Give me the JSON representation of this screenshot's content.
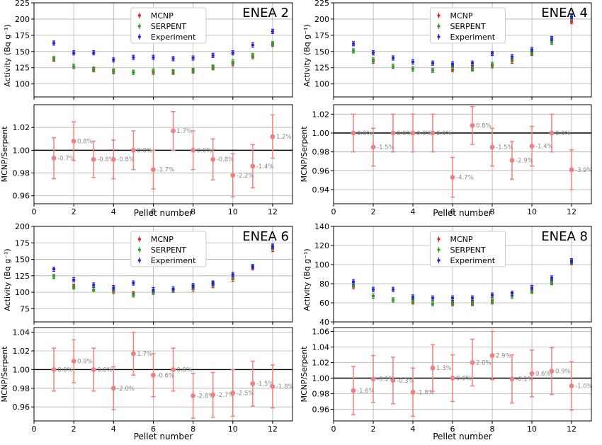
{
  "colors": {
    "mcnp": "#d62728",
    "serpent": "#2ca02c",
    "experiment": "#1f1fd6",
    "ratio": "#f08080",
    "ratio_label": "#888888",
    "grid": "#b0b0b0",
    "axis": "#000000"
  },
  "chart_data": [
    {
      "id": "enea2",
      "title": "ENEA 2",
      "top": {
        "type": "scatter",
        "ylabel": "Activity (Bq g⁻¹)",
        "ylim": [
          80,
          225
        ],
        "yticks": [
          100,
          125,
          150,
          175,
          200,
          225
        ],
        "legend": [
          "MCNP",
          "SERPENT",
          "Experiment"
        ],
        "legend_position": "top-center",
        "series": [
          {
            "name": "MCNP",
            "x": [
              1,
              2,
              3,
              4,
              5,
              6,
              7,
              8,
              9,
              10,
              11,
              12
            ],
            "values": [
              138,
              127,
              122,
              119,
              118,
              118,
              118,
              120,
              125,
              131,
              142,
              161
            ]
          },
          {
            "name": "SERPENT",
            "x": [
              1,
              2,
              3,
              4,
              5,
              6,
              7,
              8,
              9,
              10,
              11,
              12
            ],
            "values": [
              139,
              127,
              123,
              120,
              118,
              120,
              119,
              121,
              126,
              134,
              144,
              162
            ]
          },
          {
            "name": "Experiment",
            "x": [
              1,
              2,
              3,
              4,
              5,
              6,
              7,
              8,
              9,
              10,
              11,
              12
            ],
            "values": [
              163,
              148,
              148,
              137,
              141,
              141,
              139,
              140,
              144,
              148,
              160,
              181
            ]
          }
        ]
      },
      "bottom": {
        "type": "scatter",
        "xlabel": "Pellet number",
        "ylabel": "MCNP/Serpent",
        "xlim": [
          0,
          13
        ],
        "xticks": [
          0,
          2,
          4,
          6,
          8,
          10,
          12
        ],
        "ylim": [
          0.953,
          1.04
        ],
        "yticks": [
          0.96,
          0.98,
          1.0,
          1.02
        ],
        "ytick_labels": [
          "0.96",
          "0.98",
          "1.00",
          "1.02"
        ],
        "reference_line": 1.0,
        "x": [
          1,
          2,
          3,
          4,
          5,
          6,
          7,
          8,
          9,
          10,
          11,
          12
        ],
        "values": [
          0.993,
          1.008,
          0.992,
          0.992,
          1.0,
          0.983,
          1.017,
          1.0,
          0.992,
          0.978,
          0.986,
          1.012
        ],
        "errors": [
          0.018,
          0.017,
          0.016,
          0.017,
          0.017,
          0.017,
          0.017,
          0.017,
          0.018,
          0.019,
          0.019,
          0.019
        ],
        "labels": [
          "-0.7%",
          "0.8%",
          "-0.8%",
          "-0.8%",
          "0.0%",
          "-1.7%",
          "1.7%",
          "0.0%",
          "-0.8%",
          "-2.2%",
          "-1.4%",
          "1.2%"
        ]
      }
    },
    {
      "id": "enea4",
      "title": "ENEA 4",
      "top": {
        "type": "scatter",
        "ylabel": "Activity (Bq g⁻¹)",
        "ylim": [
          80,
          225
        ],
        "yticks": [
          100,
          125,
          150,
          175,
          200,
          225
        ],
        "legend": [
          "MCNP",
          "SERPENT",
          "Experiment"
        ],
        "legend_position": "top-center",
        "series": [
          {
            "name": "MCNP",
            "x": [
              1,
              2,
              3,
              4,
              5,
              6,
              7,
              8,
              9,
              10,
              11,
              12
            ],
            "values": [
              151,
              135,
              127,
              123,
              121,
              122,
              124,
              128,
              135,
              147,
              164,
              196
            ]
          },
          {
            "name": "SERPENT",
            "x": [
              1,
              2,
              3,
              4,
              5,
              6,
              7,
              8,
              9,
              10,
              11,
              12
            ],
            "values": [
              151,
              137,
              127,
              123,
              121,
              126,
              123,
              130,
              138,
              148,
              164,
              202
            ]
          },
          {
            "name": "Experiment",
            "x": [
              1,
              2,
              3,
              4,
              5,
              6,
              7,
              8,
              9,
              10,
              11,
              12
            ],
            "values": [
              162,
              148,
              140,
              134,
              132,
              131,
              132,
              147,
              142,
              153,
              170,
              204
            ]
          }
        ]
      },
      "bottom": {
        "type": "scatter",
        "xlabel": "Pellet number",
        "ylabel": "MCNP/Serpent",
        "xlim": [
          0,
          13
        ],
        "xticks": [
          0,
          2,
          4,
          6,
          8,
          10,
          12
        ],
        "ylim": [
          0.925,
          1.03
        ],
        "yticks": [
          0.94,
          0.96,
          0.98,
          1.0,
          1.02
        ],
        "ytick_labels": [
          "0.94",
          "0.96",
          "0.98",
          "1.00",
          "1.02"
        ],
        "reference_line": 1.0,
        "x": [
          1,
          2,
          3,
          4,
          5,
          6,
          7,
          8,
          9,
          10,
          11,
          12
        ],
        "values": [
          1.0,
          0.985,
          1.0,
          1.0,
          1.0,
          0.953,
          1.008,
          0.985,
          0.971,
          0.986,
          1.0,
          0.961
        ],
        "errors": [
          0.02,
          0.02,
          0.02,
          0.02,
          0.02,
          0.021,
          0.02,
          0.02,
          0.02,
          0.021,
          0.02,
          0.021
        ],
        "labels": [
          "0.0%",
          "-1.5%",
          "0.0%",
          "0.0%",
          "0.0%",
          "-4.7%",
          "0.8%",
          "-1.5%",
          "-2.9%",
          "-1.4%",
          "0.0%",
          "-3.9%"
        ]
      }
    },
    {
      "id": "enea6",
      "title": "ENEA 6",
      "top": {
        "type": "scatter",
        "ylabel": "Activity (Bq g⁻¹)",
        "ylim": [
          55,
          200
        ],
        "yticks": [
          75,
          100,
          125,
          150,
          175,
          200
        ],
        "legend": [
          "MCNP",
          "SERPENT",
          "Experiment"
        ],
        "legend_position": "top-center",
        "series": [
          {
            "name": "MCNP",
            "x": [
              1,
              2,
              3,
              4,
              5,
              6,
              7,
              8,
              9,
              10,
              11,
              12
            ],
            "values": [
              124,
              109,
              104,
              101,
              98,
              100,
              103,
              105,
              110,
              120,
              137,
              165
            ]
          },
          {
            "name": "SERPENT",
            "x": [
              1,
              2,
              3,
              4,
              5,
              6,
              7,
              8,
              9,
              10,
              11,
              12
            ],
            "values": [
              124,
              108,
              104,
              103,
              96,
              101,
              103,
              108,
              113,
              123,
              139,
              168
            ]
          },
          {
            "name": "Experiment",
            "x": [
              1,
              2,
              3,
              4,
              5,
              6,
              7,
              8,
              9,
              10,
              11,
              12
            ],
            "values": [
              135,
              119,
              111,
              107,
              114,
              104,
              105,
              110,
              114,
              127,
              139,
              170
            ]
          }
        ]
      },
      "bottom": {
        "type": "scatter",
        "xlabel": "Pellet number",
        "ylabel": "MCNP/Serpent",
        "xlim": [
          0,
          13
        ],
        "xticks": [
          0,
          2,
          4,
          6,
          8,
          10,
          12
        ],
        "ylim": [
          0.945,
          1.045
        ],
        "yticks": [
          0.96,
          0.98,
          1.0,
          1.02,
          1.04
        ],
        "ytick_labels": [
          "0.96",
          "0.98",
          "1.00",
          "1.02",
          "1.04"
        ],
        "reference_line": 1.0,
        "x": [
          1,
          2,
          3,
          4,
          5,
          6,
          7,
          8,
          9,
          10,
          11,
          12
        ],
        "values": [
          1.0,
          1.009,
          1.0,
          0.98,
          1.017,
          0.994,
          1.0,
          0.972,
          0.973,
          0.975,
          0.985,
          0.982
        ],
        "errors": [
          0.023,
          0.023,
          0.023,
          0.023,
          0.023,
          0.023,
          0.023,
          0.024,
          0.024,
          0.025,
          0.024,
          0.023
        ],
        "labels": [
          "0.0%",
          "0.9%",
          "0.0%",
          "-2.0%",
          "1.7%",
          "-0.6%",
          "0.0%",
          "-2.8%",
          "-2.7%",
          "-2.5%",
          "-1.5%",
          "-1.8%"
        ]
      }
    },
    {
      "id": "enea8",
      "title": "ENEA 8",
      "top": {
        "type": "scatter",
        "ylabel": "Activity (Bq g⁻¹)",
        "ylim": [
          40,
          140
        ],
        "yticks": [
          40,
          60,
          80,
          100,
          120,
          140
        ],
        "legend": [
          "MCNP",
          "SERPENT",
          "Experiment"
        ],
        "legend_position": "top-center",
        "series": [
          {
            "name": "MCNP",
            "x": [
              1,
              2,
              3,
              4,
              5,
              6,
              7,
              8,
              9,
              10,
              11,
              12
            ],
            "values": [
              77,
              67,
              63,
              61,
              59,
              60,
              60,
              62,
              67,
              73,
              82,
              102
            ]
          },
          {
            "name": "SERPENT",
            "x": [
              1,
              2,
              3,
              4,
              5,
              6,
              7,
              8,
              9,
              10,
              11,
              12
            ],
            "values": [
              79,
              67,
              63,
              62,
              59,
              59,
              59,
              61,
              67,
              72,
              81,
              103
            ]
          },
          {
            "name": "Experiment",
            "x": [
              1,
              2,
              3,
              4,
              5,
              6,
              7,
              8,
              9,
              10,
              11,
              12
            ],
            "values": [
              82,
              74,
              74,
              66,
              65,
              65,
              65,
              68,
              70,
              76,
              86,
              104
            ]
          }
        ]
      },
      "bottom": {
        "type": "scatter",
        "xlabel": "Pellet number",
        "ylabel": "MCNP/Serpent",
        "xlim": [
          0,
          13
        ],
        "xticks": [
          0,
          2,
          4,
          6,
          8,
          10,
          12
        ],
        "ylim": [
          0.945,
          1.065
        ],
        "yticks": [
          0.96,
          0.98,
          1.0,
          1.02,
          1.04,
          1.06
        ],
        "ytick_labels": [
          "0.96",
          "0.98",
          "1.00",
          "1.02",
          "1.04",
          "1.06"
        ],
        "reference_line": 1.0,
        "x": [
          1,
          2,
          3,
          4,
          5,
          6,
          7,
          8,
          9,
          10,
          11,
          12
        ],
        "values": [
          0.984,
          0.999,
          0.997,
          0.982,
          1.013,
          1.0,
          1.02,
          1.029,
          0.999,
          1.006,
          1.009,
          0.99
        ],
        "errors": [
          0.031,
          0.03,
          0.03,
          0.031,
          0.03,
          0.03,
          0.03,
          0.031,
          0.031,
          0.03,
          0.03,
          0.031
        ],
        "labels": [
          "-1.6%",
          "-0.1%",
          "-0.3%",
          "-1.8%",
          "1.3%",
          "0.0%",
          "2.0%",
          "2.9%",
          "-0.1%",
          "0.6%",
          "0.9%",
          "-1.0%"
        ]
      }
    }
  ]
}
